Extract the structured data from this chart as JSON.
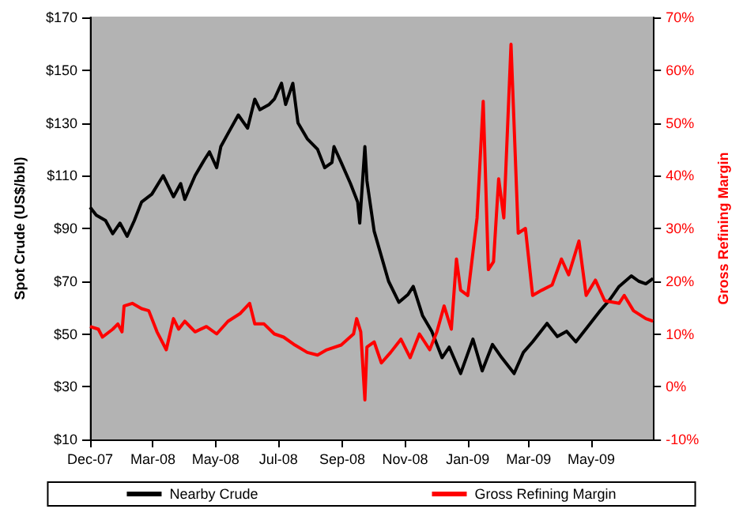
{
  "chart_data": {
    "type": "line",
    "ylabel": "Spot Crude (US$/bbl)",
    "y2label": "Gross Refining Margin",
    "legend": "bottom",
    "grid": false,
    "marker": "none",
    "line_style": "solid",
    "xlim": [
      "2007-12-31",
      "2009-06-30"
    ],
    "xticks": [
      {
        "value": "2007-12-31",
        "label": "Dec-07"
      },
      {
        "value": "2008-03-01",
        "label": "Mar-08"
      },
      {
        "value": "2008-05-01",
        "label": "May-08"
      },
      {
        "value": "2008-07-01",
        "label": "Jul-08"
      },
      {
        "value": "2008-09-01",
        "label": "Sep-08"
      },
      {
        "value": "2008-11-01",
        "label": "Nov-08"
      },
      {
        "value": "2009-01-01",
        "label": "Jan-09"
      },
      {
        "value": "2009-03-01",
        "label": "Mar-09"
      },
      {
        "value": "2009-05-01",
        "label": "May-09"
      }
    ],
    "ylim": [
      10,
      170
    ],
    "yticks": [
      {
        "value": 10,
        "label": "$10"
      },
      {
        "value": 30,
        "label": "$30"
      },
      {
        "value": 50,
        "label": "$50"
      },
      {
        "value": 70,
        "label": "$70"
      },
      {
        "value": 90,
        "label": "$90"
      },
      {
        "value": 110,
        "label": "$110"
      },
      {
        "value": 130,
        "label": "$130"
      },
      {
        "value": 150,
        "label": "$150"
      },
      {
        "value": 170,
        "label": "$170"
      }
    ],
    "y2lim": [
      -10,
      70
    ],
    "y2ticks": [
      {
        "value": -10,
        "label": "-10%"
      },
      {
        "value": 0,
        "label": "0%"
      },
      {
        "value": 10,
        "label": "10%"
      },
      {
        "value": 20,
        "label": "20%"
      },
      {
        "value": 30,
        "label": "30%"
      },
      {
        "value": 40,
        "label": "40%"
      },
      {
        "value": 50,
        "label": "50%"
      },
      {
        "value": 60,
        "label": "60%"
      },
      {
        "value": 70,
        "label": "70%"
      }
    ],
    "series": [
      {
        "name": "Nearby Crude",
        "color": "#000000",
        "x": [
          "2007-12-31",
          "2008-01-06",
          "2008-01-15",
          "2008-01-22",
          "2008-01-29",
          "2008-02-05",
          "2008-02-12",
          "2008-02-19",
          "2008-02-29",
          "2008-03-11",
          "2008-03-21",
          "2008-03-28",
          "2008-04-01",
          "2008-04-11",
          "2008-04-20",
          "2008-04-25",
          "2008-05-02",
          "2008-05-06",
          "2008-05-13",
          "2008-05-23",
          "2008-06-01",
          "2008-06-08",
          "2008-06-13",
          "2008-06-22",
          "2008-06-27",
          "2008-07-04",
          "2008-07-08",
          "2008-07-15",
          "2008-07-20",
          "2008-07-29",
          "2008-08-08",
          "2008-08-15",
          "2008-08-22",
          "2008-08-24",
          "2008-08-31",
          "2008-09-09",
          "2008-09-16",
          "2008-09-18",
          "2008-09-23",
          "2008-09-25",
          "2008-10-02",
          "2008-10-16",
          "2008-10-26",
          "2008-11-04",
          "2008-11-09",
          "2008-11-18",
          "2008-11-27",
          "2008-12-07",
          "2008-12-14",
          "2008-12-25",
          "2009-01-06",
          "2009-01-15",
          "2009-01-25",
          "2009-02-03",
          "2009-02-15",
          "2009-02-24",
          "2009-03-05",
          "2009-03-19",
          "2009-03-29",
          "2009-04-07",
          "2009-04-16",
          "2009-04-30",
          "2009-05-10",
          "2009-05-19",
          "2009-05-28",
          "2009-06-09",
          "2009-06-16",
          "2009-06-23",
          "2009-06-30"
        ],
        "values": [
          98,
          95,
          93,
          88,
          92,
          87,
          93,
          100,
          103,
          110,
          102,
          107,
          101,
          110,
          116,
          119,
          113,
          121,
          126,
          133,
          128,
          139,
          135,
          137,
          139,
          145,
          137,
          145,
          130,
          124,
          120,
          113,
          115,
          121,
          115,
          107,
          100,
          92,
          121,
          108,
          89,
          70,
          62,
          65,
          68,
          57,
          51,
          41,
          45,
          35,
          48,
          36,
          46,
          41,
          35,
          43,
          47,
          54,
          49,
          51,
          47,
          54,
          59,
          63,
          68,
          72,
          70,
          69,
          71
        ]
      },
      {
        "name": "Gross Refining Margin",
        "color": "#ff0000",
        "axis": "y2",
        "x": [
          "2007-12-31",
          "2008-01-08",
          "2008-01-12",
          "2008-01-22",
          "2008-01-27",
          "2008-01-31",
          "2008-02-02",
          "2008-02-10",
          "2008-02-19",
          "2008-02-26",
          "2008-03-05",
          "2008-03-14",
          "2008-03-21",
          "2008-03-26",
          "2008-04-01",
          "2008-04-11",
          "2008-04-22",
          "2008-05-02",
          "2008-05-13",
          "2008-05-25",
          "2008-06-03",
          "2008-06-08",
          "2008-06-17",
          "2008-06-27",
          "2008-07-06",
          "2008-07-17",
          "2008-07-29",
          "2008-08-08",
          "2008-08-17",
          "2008-08-31",
          "2008-09-12",
          "2008-09-15",
          "2008-09-19",
          "2008-09-23",
          "2008-09-25",
          "2008-10-02",
          "2008-10-09",
          "2008-10-18",
          "2008-10-28",
          "2008-11-06",
          "2008-11-15",
          "2008-11-25",
          "2008-12-02",
          "2008-12-09",
          "2008-12-16",
          "2008-12-21",
          "2008-12-25",
          "2009-01-01",
          "2009-01-10",
          "2009-01-16",
          "2009-01-21",
          "2009-01-26",
          "2009-01-31",
          "2009-02-05",
          "2009-02-12",
          "2009-02-19",
          "2009-02-26",
          "2009-03-05",
          "2009-03-14",
          "2009-03-24",
          "2009-04-02",
          "2009-04-09",
          "2009-04-19",
          "2009-04-26",
          "2009-05-05",
          "2009-05-14",
          "2009-05-28",
          "2009-06-02",
          "2009-06-11",
          "2009-06-23",
          "2009-06-30"
        ],
        "values": [
          11.4,
          10.9,
          9.4,
          10.9,
          11.9,
          10.4,
          15.3,
          15.8,
          14.8,
          14.4,
          10.4,
          7,
          12.9,
          10.9,
          12.4,
          10.4,
          11.4,
          10,
          12.4,
          13.9,
          15.8,
          11.9,
          11.9,
          10,
          9.4,
          7.9,
          6.5,
          6,
          7,
          7.9,
          10,
          12.9,
          10.4,
          -2.5,
          7.5,
          8.5,
          4.5,
          6.5,
          9,
          5.5,
          10,
          7,
          10.4,
          15.3,
          10.9,
          24.2,
          18.3,
          17.3,
          32,
          54.1,
          22.2,
          23.7,
          39.4,
          32,
          64.9,
          29.1,
          30,
          17.3,
          18.3,
          19.3,
          24.2,
          21.2,
          27.6,
          17.3,
          20.2,
          16.3,
          15.8,
          17.3,
          14.4,
          12.9,
          12.4
        ]
      }
    ]
  }
}
